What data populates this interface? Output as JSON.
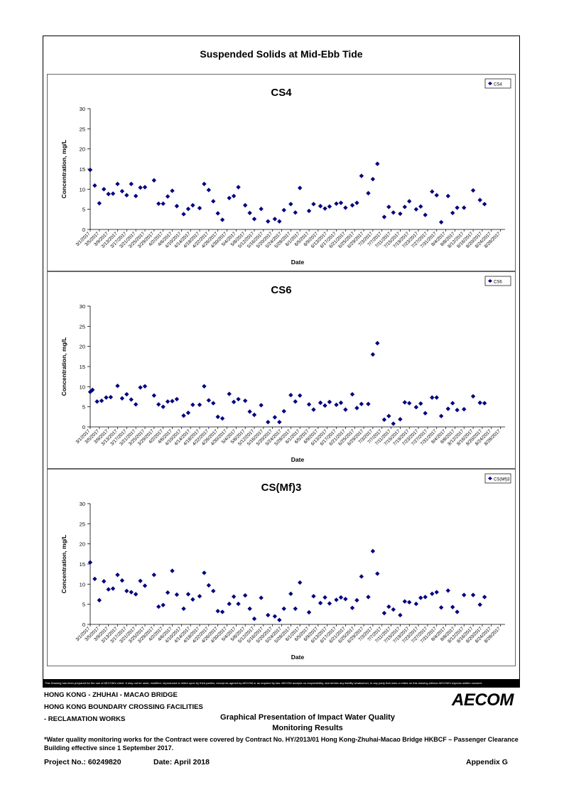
{
  "page": {
    "title": "Suspended Solids at Mid-Ebb Tide",
    "disclaimer": "This Drawing has been prepared for the use of AECOM's client. It may not be used, modified, reproduced or relied upon by third parties, except as agreed by AECOM or as required by law. AECOM accepts no responsibility, and denies any liability whatsoever, to any party that uses or relies on this drawing without AECOM's express written consent.",
    "footer": {
      "line1": "HONG KONG - ZHUHAI - MACAO BRIDGE",
      "line2": "HONG KONG BOUNDARY CROSSING FACILITIES",
      "line3": "- RECLAMATION WORKS",
      "center_line1": "Graphical Presentation of Impact Water Quality",
      "center_line2": "Monitoring Results",
      "logo": "AECOM",
      "note": "*Water quality monitoring works for the Contract were covered by Contract No. HY/2013/01 Hong Kong-Zhuhai-Macao Bridge HKBCF – Passenger Clearance Building effective since 1 September 2017.",
      "project": "Project No.: 60249820",
      "date": "Date: April 2018",
      "appendix": "Appendix G"
    }
  },
  "marker_color": "#000080",
  "chart_data": [
    {
      "type": "scatter",
      "title": "CS4",
      "legend": "CS4",
      "legend_position": "top-right",
      "xlabel": "Date",
      "ylabel": "Concentration, mg/L",
      "ylim": [
        0,
        30
      ],
      "yticks": [
        0,
        5,
        10,
        15,
        20,
        25,
        30
      ],
      "xlim": [
        "2017-03-01",
        "2017-08-30"
      ],
      "xtick_labels": [
        "3/1/2017",
        "3/5/2017",
        "3/9/2017",
        "3/13/2017",
        "3/17/2017",
        "3/21/2017",
        "3/25/2017",
        "3/29/2017",
        "4/2/2017",
        "4/6/2017",
        "4/10/2017",
        "4/14/2017",
        "4/18/2017",
        "4/22/2017",
        "4/26/2017",
        "4/30/2017",
        "5/4/2017",
        "5/8/2017",
        "5/12/2017",
        "5/16/2017",
        "5/20/2017",
        "5/24/2017",
        "5/28/2017",
        "6/1/2017",
        "6/5/2017",
        "6/9/2017",
        "6/13/2017",
        "6/17/2017",
        "6/21/2017",
        "6/25/2017",
        "6/29/2017",
        "7/3/2017",
        "7/7/2017",
        "7/11/2017",
        "7/15/2017",
        "7/19/2017",
        "7/23/2017",
        "7/27/2017",
        "7/31/2017",
        "8/4/2017",
        "8/8/2017",
        "8/12/2017",
        "8/16/2017",
        "8/20/2017",
        "8/24/2017",
        "8/28/2017"
      ],
      "points": [
        [
          "2017-03-01",
          14.8
        ],
        [
          "2017-03-03",
          10.9
        ],
        [
          "2017-03-05",
          6.5
        ],
        [
          "2017-03-07",
          10.0
        ],
        [
          "2017-03-09",
          8.8
        ],
        [
          "2017-03-11",
          8.9
        ],
        [
          "2017-03-13",
          11.3
        ],
        [
          "2017-03-15",
          9.5
        ],
        [
          "2017-03-17",
          8.5
        ],
        [
          "2017-03-19",
          11.3
        ],
        [
          "2017-03-21",
          8.3
        ],
        [
          "2017-03-23",
          10.4
        ],
        [
          "2017-03-25",
          10.5
        ],
        [
          "2017-03-29",
          12.2
        ],
        [
          "2017-03-31",
          6.4
        ],
        [
          "2017-04-02",
          6.4
        ],
        [
          "2017-04-04",
          8.2
        ],
        [
          "2017-04-06",
          9.6
        ],
        [
          "2017-04-08",
          5.8
        ],
        [
          "2017-04-11",
          3.8
        ],
        [
          "2017-04-13",
          5.1
        ],
        [
          "2017-04-15",
          6.0
        ],
        [
          "2017-04-18",
          5.3
        ],
        [
          "2017-04-20",
          11.3
        ],
        [
          "2017-04-22",
          9.8
        ],
        [
          "2017-04-24",
          7.0
        ],
        [
          "2017-04-26",
          4.0
        ],
        [
          "2017-04-28",
          2.4
        ],
        [
          "2017-05-01",
          7.8
        ],
        [
          "2017-05-03",
          8.3
        ],
        [
          "2017-05-05",
          10.5
        ],
        [
          "2017-05-08",
          6.0
        ],
        [
          "2017-05-10",
          4.1
        ],
        [
          "2017-05-12",
          2.6
        ],
        [
          "2017-05-15",
          5.1
        ],
        [
          "2017-05-18",
          2.0
        ],
        [
          "2017-05-21",
          2.6
        ],
        [
          "2017-05-23",
          2.0
        ],
        [
          "2017-05-25",
          4.8
        ],
        [
          "2017-05-28",
          6.3
        ],
        [
          "2017-05-30",
          4.2
        ],
        [
          "2017-06-01",
          10.3
        ],
        [
          "2017-06-05",
          4.6
        ],
        [
          "2017-06-07",
          6.3
        ],
        [
          "2017-06-10",
          5.8
        ],
        [
          "2017-06-12",
          5.2
        ],
        [
          "2017-06-14",
          5.7
        ],
        [
          "2017-06-17",
          6.4
        ],
        [
          "2017-06-19",
          6.6
        ],
        [
          "2017-06-21",
          5.4
        ],
        [
          "2017-06-24",
          6.0
        ],
        [
          "2017-06-26",
          6.6
        ],
        [
          "2017-06-28",
          13.3
        ],
        [
          "2017-07-01",
          9.0
        ],
        [
          "2017-07-03",
          12.5
        ],
        [
          "2017-07-05",
          16.3
        ],
        [
          "2017-07-08",
          3.1
        ],
        [
          "2017-07-10",
          5.6
        ],
        [
          "2017-07-12",
          4.2
        ],
        [
          "2017-07-15",
          3.9
        ],
        [
          "2017-07-17",
          5.6
        ],
        [
          "2017-07-19",
          7.0
        ],
        [
          "2017-07-22",
          5.0
        ],
        [
          "2017-07-24",
          5.7
        ],
        [
          "2017-07-26",
          3.6
        ],
        [
          "2017-07-29",
          9.4
        ],
        [
          "2017-07-31",
          8.5
        ],
        [
          "2017-08-02",
          1.8
        ],
        [
          "2017-08-05",
          8.3
        ],
        [
          "2017-08-07",
          4.1
        ],
        [
          "2017-08-09",
          5.4
        ],
        [
          "2017-08-12",
          5.4
        ],
        [
          "2017-08-16",
          9.7
        ],
        [
          "2017-08-19",
          7.3
        ],
        [
          "2017-08-21",
          6.3
        ]
      ]
    },
    {
      "type": "scatter",
      "title": "CS6",
      "legend": "CS6",
      "legend_position": "top-right",
      "xlabel": "Date",
      "ylabel": "Concentration, mg/L",
      "ylim": [
        0,
        30
      ],
      "yticks": [
        0,
        5,
        10,
        15,
        20,
        25,
        30
      ],
      "xlim": [
        "2017-03-01",
        "2017-08-30"
      ],
      "xtick_labels": [
        "3/1/2017",
        "3/5/2017",
        "3/9/2017",
        "3/13/2017",
        "3/17/2017",
        "3/21/2017",
        "3/25/2017",
        "3/29/2017",
        "4/2/2017",
        "4/6/2017",
        "4/10/2017",
        "4/14/2017",
        "4/18/2017",
        "4/22/2017",
        "4/26/2017",
        "4/30/2017",
        "5/4/2017",
        "5/8/2017",
        "5/12/2017",
        "5/16/2017",
        "5/20/2017",
        "5/24/2017",
        "5/28/2017",
        "6/1/2017",
        "6/5/2017",
        "6/9/2017",
        "6/13/2017",
        "6/17/2017",
        "6/21/2017",
        "6/25/2017",
        "6/29/2017",
        "7/3/2017",
        "7/7/2017",
        "7/11/2017",
        "7/15/2017",
        "7/19/2017",
        "7/23/2017",
        "7/27/2017",
        "7/31/2017",
        "8/4/2017",
        "8/8/2017",
        "8/12/2017",
        "8/16/2017",
        "8/20/2017",
        "8/24/2017",
        "8/28/2017"
      ],
      "points": [
        [
          "2017-03-01",
          8.7
        ],
        [
          "2017-03-02",
          9.2
        ],
        [
          "2017-03-04",
          6.3
        ],
        [
          "2017-03-06",
          6.5
        ],
        [
          "2017-03-08",
          7.3
        ],
        [
          "2017-03-10",
          7.4
        ],
        [
          "2017-03-13",
          10.2
        ],
        [
          "2017-03-15",
          7.1
        ],
        [
          "2017-03-17",
          8.1
        ],
        [
          "2017-03-19",
          6.8
        ],
        [
          "2017-03-21",
          5.6
        ],
        [
          "2017-03-23",
          9.8
        ],
        [
          "2017-03-25",
          10.1
        ],
        [
          "2017-03-29",
          7.8
        ],
        [
          "2017-03-31",
          5.6
        ],
        [
          "2017-04-02",
          5.0
        ],
        [
          "2017-04-04",
          6.3
        ],
        [
          "2017-04-06",
          6.4
        ],
        [
          "2017-04-08",
          6.9
        ],
        [
          "2017-04-11",
          2.8
        ],
        [
          "2017-04-13",
          3.5
        ],
        [
          "2017-04-15",
          5.5
        ],
        [
          "2017-04-18",
          5.5
        ],
        [
          "2017-04-20",
          10.1
        ],
        [
          "2017-04-22",
          6.6
        ],
        [
          "2017-04-24",
          5.9
        ],
        [
          "2017-04-26",
          2.5
        ],
        [
          "2017-04-28",
          2.1
        ],
        [
          "2017-05-01",
          8.2
        ],
        [
          "2017-05-03",
          6.2
        ],
        [
          "2017-05-05",
          6.9
        ],
        [
          "2017-05-08",
          6.5
        ],
        [
          "2017-05-10",
          3.8
        ],
        [
          "2017-05-12",
          3.0
        ],
        [
          "2017-05-15",
          5.4
        ],
        [
          "2017-05-18",
          1.2
        ],
        [
          "2017-05-21",
          2.4
        ],
        [
          "2017-05-23",
          1.2
        ],
        [
          "2017-05-25",
          3.9
        ],
        [
          "2017-05-28",
          7.9
        ],
        [
          "2017-05-30",
          6.3
        ],
        [
          "2017-06-01",
          7.8
        ],
        [
          "2017-06-05",
          5.6
        ],
        [
          "2017-06-07",
          4.3
        ],
        [
          "2017-06-10",
          6.0
        ],
        [
          "2017-06-12",
          5.3
        ],
        [
          "2017-06-14",
          6.2
        ],
        [
          "2017-06-17",
          5.5
        ],
        [
          "2017-06-19",
          6.0
        ],
        [
          "2017-06-21",
          4.3
        ],
        [
          "2017-06-24",
          8.1
        ],
        [
          "2017-06-26",
          4.7
        ],
        [
          "2017-06-28",
          5.7
        ],
        [
          "2017-07-01",
          5.7
        ],
        [
          "2017-07-03",
          18.0
        ],
        [
          "2017-07-05",
          20.8
        ],
        [
          "2017-07-08",
          1.8
        ],
        [
          "2017-07-10",
          2.7
        ],
        [
          "2017-07-12",
          0.8
        ],
        [
          "2017-07-15",
          1.9
        ],
        [
          "2017-07-17",
          6.1
        ],
        [
          "2017-07-19",
          5.9
        ],
        [
          "2017-07-22",
          4.9
        ],
        [
          "2017-07-24",
          5.8
        ],
        [
          "2017-07-26",
          3.4
        ],
        [
          "2017-07-29",
          7.3
        ],
        [
          "2017-07-31",
          7.3
        ],
        [
          "2017-08-02",
          2.7
        ],
        [
          "2017-08-05",
          4.5
        ],
        [
          "2017-08-07",
          5.9
        ],
        [
          "2017-08-09",
          4.2
        ],
        [
          "2017-08-12",
          4.4
        ],
        [
          "2017-08-16",
          7.6
        ],
        [
          "2017-08-19",
          6.0
        ],
        [
          "2017-08-21",
          5.9
        ]
      ]
    },
    {
      "type": "scatter",
      "title": "CS(Mf)3",
      "legend": "CS(Mf)3",
      "legend_position": "top-right",
      "xlabel": "Date",
      "ylabel": "Concentration, mg/L",
      "ylim": [
        0,
        30
      ],
      "yticks": [
        0,
        5,
        10,
        15,
        20,
        25,
        30
      ],
      "xlim": [
        "2017-03-01",
        "2017-08-30"
      ],
      "xtick_labels": [
        "3/1/2017",
        "3/5/2017",
        "3/9/2017",
        "3/13/2017",
        "3/17/2017",
        "3/21/2017",
        "3/25/2017",
        "3/29/2017",
        "4/2/2017",
        "4/6/2017",
        "4/10/2017",
        "4/14/2017",
        "4/18/2017",
        "4/22/2017",
        "4/26/2017",
        "4/30/2017",
        "5/4/2017",
        "5/8/2017",
        "5/12/2017",
        "5/16/2017",
        "5/20/2017",
        "5/24/2017",
        "5/28/2017",
        "6/1/2017",
        "6/5/2017",
        "6/9/2017",
        "6/13/2017",
        "6/17/2017",
        "6/21/2017",
        "6/25/2017",
        "6/29/2017",
        "7/3/2017",
        "7/7/2017",
        "7/11/2017",
        "7/15/2017",
        "7/19/2017",
        "7/23/2017",
        "7/27/2017",
        "7/31/2017",
        "8/4/2017",
        "8/8/2017",
        "8/12/2017",
        "8/16/2017",
        "8/20/2017",
        "8/24/2017",
        "8/28/2017"
      ],
      "points": [
        [
          "2017-03-01",
          15.4
        ],
        [
          "2017-03-03",
          11.3
        ],
        [
          "2017-03-05",
          6.0
        ],
        [
          "2017-03-07",
          10.7
        ],
        [
          "2017-03-09",
          8.7
        ],
        [
          "2017-03-11",
          8.9
        ],
        [
          "2017-03-13",
          12.3
        ],
        [
          "2017-03-15",
          10.9
        ],
        [
          "2017-03-17",
          8.3
        ],
        [
          "2017-03-19",
          8.0
        ],
        [
          "2017-03-21",
          7.5
        ],
        [
          "2017-03-23",
          10.8
        ],
        [
          "2017-03-25",
          9.6
        ],
        [
          "2017-03-29",
          12.3
        ],
        [
          "2017-03-31",
          4.4
        ],
        [
          "2017-04-02",
          4.8
        ],
        [
          "2017-04-04",
          7.9
        ],
        [
          "2017-04-06",
          13.3
        ],
        [
          "2017-04-08",
          7.4
        ],
        [
          "2017-04-11",
          3.9
        ],
        [
          "2017-04-13",
          7.5
        ],
        [
          "2017-04-15",
          6.2
        ],
        [
          "2017-04-18",
          7.0
        ],
        [
          "2017-04-20",
          12.8
        ],
        [
          "2017-04-22",
          9.7
        ],
        [
          "2017-04-24",
          8.3
        ],
        [
          "2017-04-26",
          3.3
        ],
        [
          "2017-04-28",
          3.1
        ],
        [
          "2017-05-01",
          5.1
        ],
        [
          "2017-05-03",
          6.9
        ],
        [
          "2017-05-05",
          5.1
        ],
        [
          "2017-05-08",
          7.2
        ],
        [
          "2017-05-10",
          3.9
        ],
        [
          "2017-05-12",
          1.4
        ],
        [
          "2017-05-15",
          6.6
        ],
        [
          "2017-05-18",
          2.3
        ],
        [
          "2017-05-21",
          2.0
        ],
        [
          "2017-05-23",
          1.1
        ],
        [
          "2017-05-25",
          3.9
        ],
        [
          "2017-05-28",
          7.6
        ],
        [
          "2017-05-30",
          3.9
        ],
        [
          "2017-06-01",
          10.4
        ],
        [
          "2017-06-05",
          3.0
        ],
        [
          "2017-06-07",
          7.0
        ],
        [
          "2017-06-10",
          5.3
        ],
        [
          "2017-06-12",
          6.7
        ],
        [
          "2017-06-14",
          5.2
        ],
        [
          "2017-06-17",
          6.1
        ],
        [
          "2017-06-19",
          6.7
        ],
        [
          "2017-06-21",
          6.3
        ],
        [
          "2017-06-24",
          4.1
        ],
        [
          "2017-06-26",
          6.0
        ],
        [
          "2017-06-28",
          11.9
        ],
        [
          "2017-07-01",
          6.8
        ],
        [
          "2017-07-03",
          18.2
        ],
        [
          "2017-07-05",
          12.6
        ],
        [
          "2017-07-08",
          2.8
        ],
        [
          "2017-07-10",
          4.4
        ],
        [
          "2017-07-12",
          3.7
        ],
        [
          "2017-07-15",
          2.3
        ],
        [
          "2017-07-17",
          5.7
        ],
        [
          "2017-07-19",
          5.5
        ],
        [
          "2017-07-22",
          5.1
        ],
        [
          "2017-07-24",
          6.6
        ],
        [
          "2017-07-26",
          6.8
        ],
        [
          "2017-07-29",
          7.6
        ],
        [
          "2017-07-31",
          8.0
        ],
        [
          "2017-08-02",
          4.2
        ],
        [
          "2017-08-05",
          8.4
        ],
        [
          "2017-08-07",
          4.3
        ],
        [
          "2017-08-09",
          3.1
        ],
        [
          "2017-08-12",
          7.3
        ],
        [
          "2017-08-16",
          7.3
        ],
        [
          "2017-08-19",
          4.9
        ],
        [
          "2017-08-21",
          6.8
        ]
      ]
    }
  ]
}
